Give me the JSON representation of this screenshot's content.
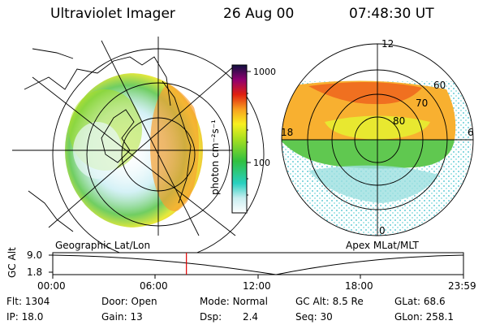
{
  "header": {
    "instrument": "Ultraviolet Imager",
    "date": "26 Aug 00",
    "time": "07:48:30 UT"
  },
  "colorbar": {
    "unit_label": "photon cm⁻²s⁻¹",
    "ticks": [
      "1000",
      "100"
    ]
  },
  "geo_map": {
    "label": "Geographic Lat/Lon"
  },
  "apex_map": {
    "label": "Apex MLat/MLT",
    "mlt_labels": [
      "12",
      "18",
      "6",
      "0"
    ],
    "lat_labels": [
      "60",
      "70",
      "80"
    ]
  },
  "altitude_plot": {
    "ylabel": "GC Alt",
    "y_ticks": [
      "9.0",
      "1.8"
    ],
    "x_ticks": [
      "00:00",
      "06:00",
      "12:00",
      "18:00",
      "23:59"
    ],
    "current_time_hours": 7.81
  },
  "info": {
    "flt_label": "Flt:",
    "flt_value": "1304",
    "door_label": "Door:",
    "door_value": "Open",
    "mode_label": "Mode:",
    "mode_value": "Normal",
    "gcalt_label": "GC Alt:",
    "gcalt_value": "8.5 Re",
    "glat_label": "GLat:",
    "glat_value": "68.6",
    "ip_label": "IP:",
    "ip_value": "18.0",
    "gain_label": "Gain:",
    "gain_value": "13",
    "dsp_label": "Dsp:",
    "dsp_value": "2.4",
    "seq_label": "Seq:",
    "seq_value": "30",
    "glon_label": "GLon:",
    "glon_value": "258.1"
  }
}
